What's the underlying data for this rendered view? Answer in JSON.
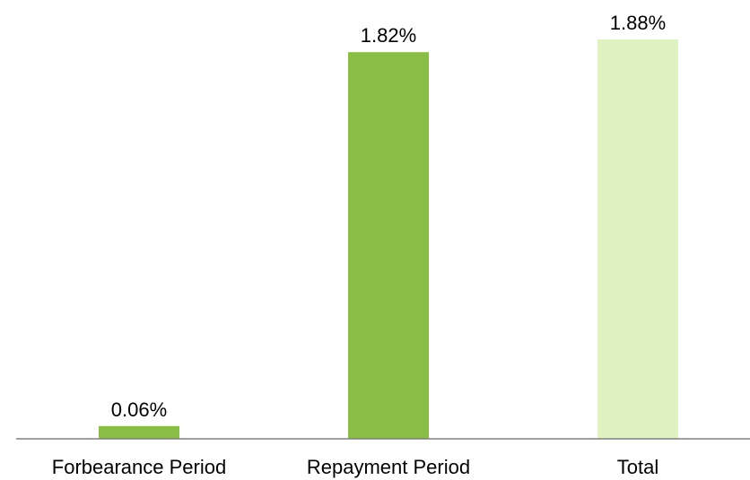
{
  "chart_data": {
    "type": "bar",
    "categories": [
      "Forbearance Period",
      "Repayment Period",
      "Total"
    ],
    "values": [
      0.06,
      1.82,
      1.88
    ],
    "value_labels": [
      "0.06%",
      "1.82%",
      "1.88%"
    ],
    "bar_colors": [
      "#8ABD45",
      "#8ABD45",
      "#DFF2C2"
    ],
    "title": "",
    "xlabel": "",
    "ylabel": "",
    "ylim": [
      0,
      1.88
    ],
    "grid": false,
    "legend": "none"
  },
  "colors": {
    "axis": "#808080"
  }
}
